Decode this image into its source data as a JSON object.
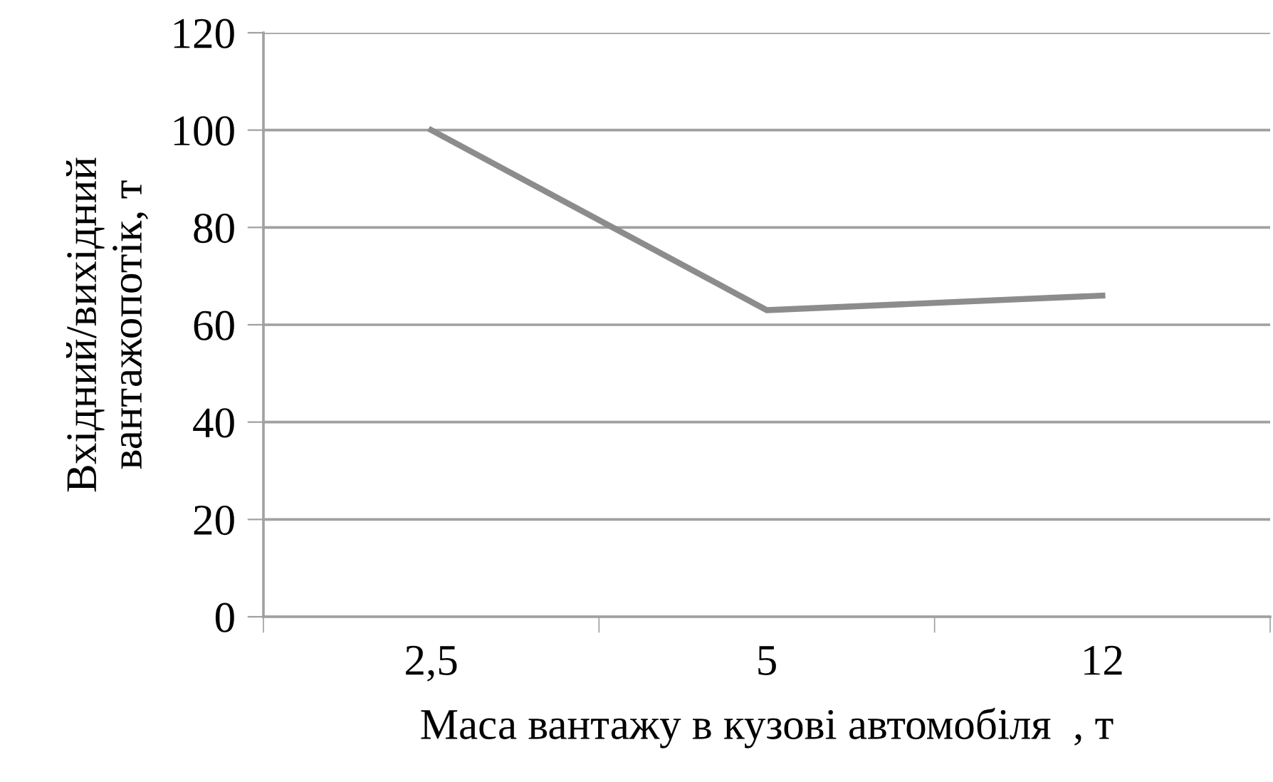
{
  "chart_data": {
    "type": "line",
    "xlabel": "Маса вантажу в кузові автомобіля  , т",
    "ylabel": "Вхідний/вихідний\nвантажопотік, т",
    "categories": [
      "2,5",
      "5",
      "12"
    ],
    "series": [
      {
        "color": "#8c8c8c",
        "values": [
          100,
          63,
          66
        ]
      }
    ],
    "ylim": [
      0,
      120
    ],
    "yticks": [
      0,
      20,
      40,
      60,
      80,
      100,
      120
    ],
    "grid": "y",
    "legend": false,
    "marker": "none",
    "line_style": "solid"
  }
}
